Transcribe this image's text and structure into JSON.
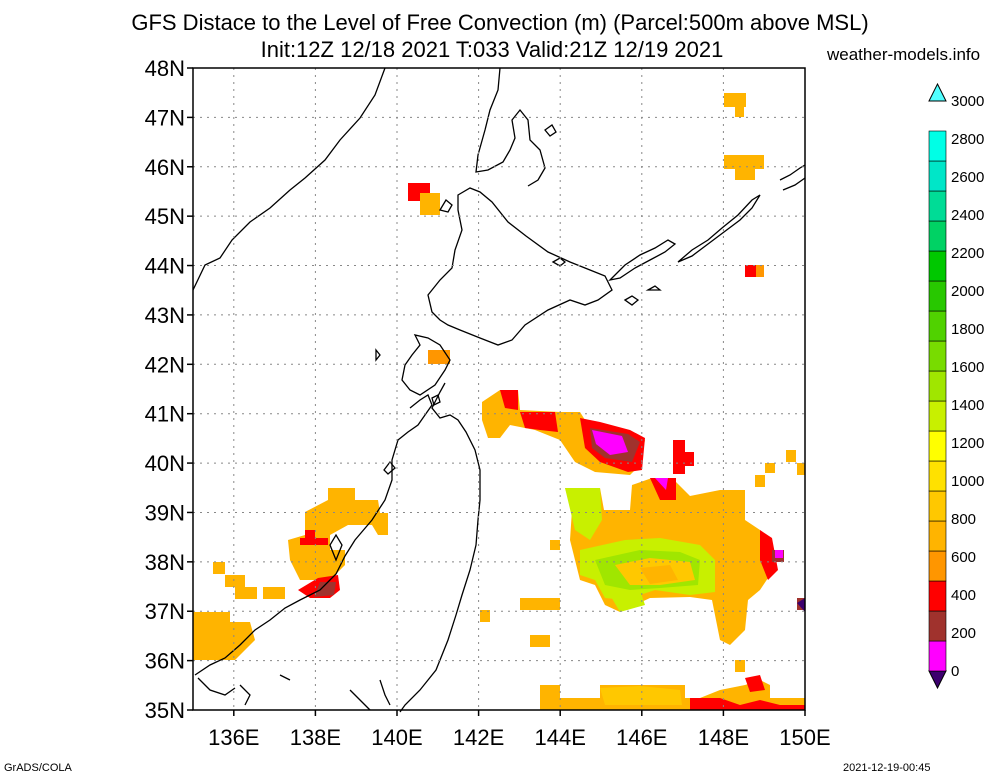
{
  "title_line1": "GFS Distace to the Level of Free Convection (m) (Parcel:500m above MSL)",
  "title_line2": "Init:12Z 12/18 2021 T:033 Valid:21Z 12/19 2021",
  "site": "weather-models.info",
  "footer_left": "GrADS/COLA",
  "footer_right": "2021-12-19-00:45",
  "map": {
    "lon_range": [
      135,
      150
    ],
    "lat_range": [
      35,
      48
    ],
    "lon_ticks": [
      {
        "value": 136,
        "label": "136E"
      },
      {
        "value": 138,
        "label": "138E"
      },
      {
        "value": 140,
        "label": "140E"
      },
      {
        "value": 142,
        "label": "142E"
      },
      {
        "value": 144,
        "label": "144E"
      },
      {
        "value": 146,
        "label": "146E"
      },
      {
        "value": 148,
        "label": "148E"
      },
      {
        "value": 150,
        "label": "150E"
      }
    ],
    "lat_ticks": [
      {
        "value": 35,
        "label": "35N"
      },
      {
        "value": 36,
        "label": "36N"
      },
      {
        "value": 37,
        "label": "37N"
      },
      {
        "value": 38,
        "label": "38N"
      },
      {
        "value": 39,
        "label": "39N"
      },
      {
        "value": 40,
        "label": "40N"
      },
      {
        "value": 41,
        "label": "41N"
      },
      {
        "value": 42,
        "label": "42N"
      },
      {
        "value": 43,
        "label": "43N"
      },
      {
        "value": 44,
        "label": "44N"
      },
      {
        "value": 45,
        "label": "45N"
      },
      {
        "value": 46,
        "label": "46N"
      },
      {
        "value": 47,
        "label": "47N"
      },
      {
        "value": 48,
        "label": "48N"
      }
    ]
  },
  "colorbar": {
    "colors": [
      "#3c006e",
      "#ff00ff",
      "#a0322d",
      "#ff0000",
      "#ff9600",
      "#ffb400",
      "#ffc800",
      "#ffe100",
      "#ffff00",
      "#c8f000",
      "#a0e600",
      "#78dc00",
      "#50d200",
      "#28c800",
      "#00c800",
      "#00d264",
      "#00dc96",
      "#00e6c8",
      "#00ffe6",
      "#50ffff"
    ],
    "labels": [
      "0",
      "200",
      "400",
      "600",
      "800",
      "1000",
      "1200",
      "1400",
      "1600",
      "1800",
      "2000",
      "2200",
      "2400",
      "2600",
      "2800",
      "3000"
    ]
  }
}
